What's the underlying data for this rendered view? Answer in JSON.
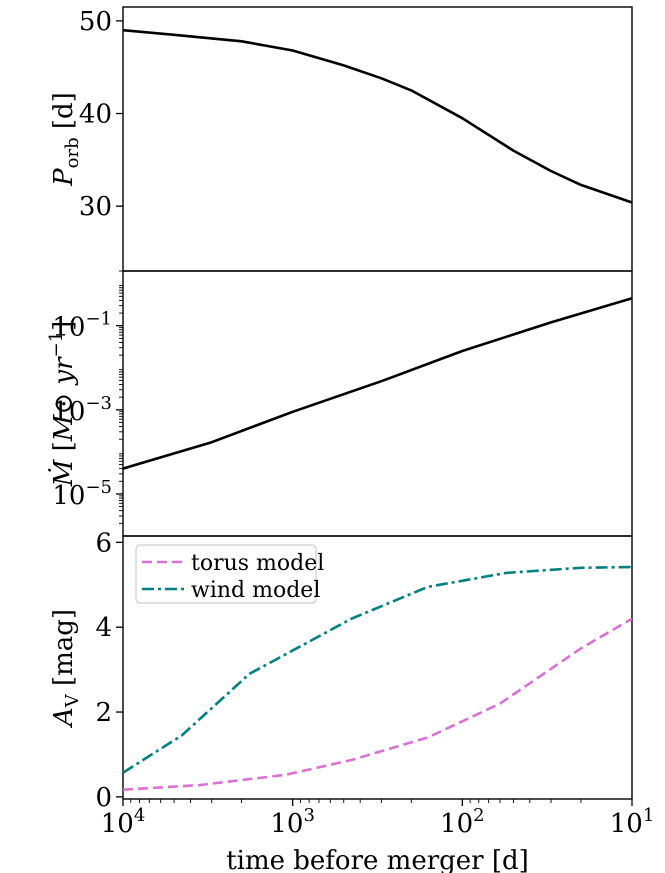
{
  "chart_data": [
    {
      "type": "line",
      "panel": "top",
      "ylabel": {
        "main": "P",
        "sub": "orb",
        "unit": "[d]"
      },
      "x_axis": "log, reversed (10^4 → 10^1), shared",
      "ylim": [
        23,
        51.5
      ],
      "yticks": [
        30,
        40,
        50
      ],
      "ytick_labels": [
        "30",
        "40",
        "50"
      ],
      "series": [
        {
          "color": "#000000",
          "x": [
            10000,
            5000,
            2000,
            1000,
            500,
            300,
            200,
            100,
            50,
            30,
            20,
            10
          ],
          "y": [
            49.0,
            48.5,
            47.8,
            46.8,
            45.2,
            43.8,
            42.5,
            39.5,
            36.0,
            33.8,
            32.3,
            30.4
          ]
        }
      ]
    },
    {
      "type": "line",
      "panel": "middle",
      "ylabel": {
        "prefix": "Ṁ",
        "unit": "M⊙ yr",
        "exponent": "−1"
      },
      "y_scale": "log",
      "ylim": [
        1e-06,
        2.0
      ],
      "yticks": [
        1e-05,
        0.001,
        0.1
      ],
      "ytick_labels": [
        {
          "base": "10",
          "exp": "−5"
        },
        {
          "base": "10",
          "exp": "−3"
        },
        {
          "base": "10",
          "exp": "−1"
        }
      ],
      "series": [
        {
          "color": "#000000",
          "x": [
            10000,
            3000,
            1000,
            300,
            100,
            30,
            10
          ],
          "y": [
            4e-05,
            0.00017,
            0.0009,
            0.0048,
            0.025,
            0.12,
            0.45
          ]
        }
      ]
    },
    {
      "type": "line",
      "panel": "bottom",
      "ylabel": {
        "main": "A",
        "sub": "V",
        "unit": "[mag]"
      },
      "ylim": [
        -0.05,
        6.15
      ],
      "yticks": [
        0,
        2,
        4,
        6
      ],
      "ytick_labels": [
        "0",
        "2",
        "4",
        "6"
      ],
      "xlabel": "time before merger [d]",
      "xticks": [
        10000,
        1000,
        100,
        10
      ],
      "xtick_labels": [
        {
          "base": "10",
          "exp": "4"
        },
        {
          "base": "10",
          "exp": "3"
        },
        {
          "base": "10",
          "exp": "2"
        },
        {
          "base": "10",
          "exp": "1"
        }
      ],
      "legend_position": "upper left",
      "series": [
        {
          "name": "torus model",
          "color": "#da70d6",
          "dash": "dashed",
          "x": [
            10000,
            3500,
            1100,
            450,
            160,
            60,
            20,
            10
          ],
          "y": [
            0.17,
            0.28,
            0.52,
            0.87,
            1.4,
            2.2,
            3.5,
            4.2
          ]
        },
        {
          "name": "wind model",
          "color": "#008080",
          "dash": "dashdot",
          "x": [
            10000,
            4500,
            1800,
            450,
            160,
            55,
            20,
            10
          ],
          "y": [
            0.57,
            1.45,
            2.9,
            4.2,
            4.95,
            5.28,
            5.4,
            5.42
          ]
        }
      ]
    }
  ]
}
